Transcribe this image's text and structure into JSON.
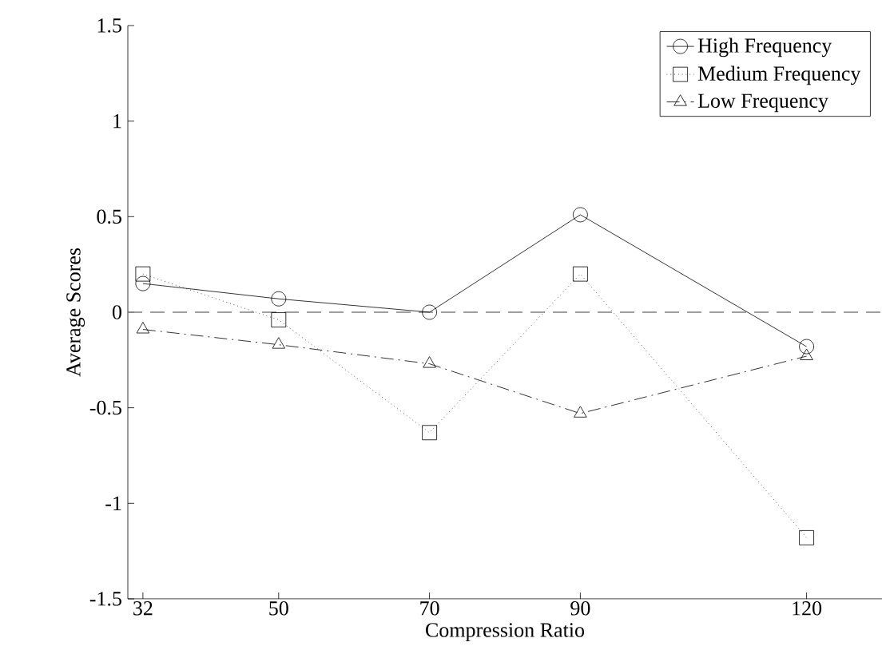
{
  "chart_data": {
    "type": "line",
    "xlabel": "Compression Ratio",
    "ylabel": "Average Scores",
    "x": [
      32,
      50,
      70,
      90,
      120
    ],
    "xlim": [
      30,
      130
    ],
    "xticks": [
      32,
      50,
      70,
      90,
      120
    ],
    "ylim": [
      -1.5,
      1.5
    ],
    "yticks": [
      -1.5,
      -1,
      -0.5,
      0,
      0.5,
      1,
      1.5
    ],
    "series": [
      {
        "name": "High Frequency",
        "color": "#000000",
        "marker": "circle",
        "line_style": "solid",
        "values": [
          0.15,
          0.07,
          0.0,
          0.51,
          -0.18
        ]
      },
      {
        "name": "Medium Frequency",
        "color": "#000000",
        "marker": "square",
        "line_style": "dotted",
        "values": [
          0.2,
          -0.04,
          -0.63,
          0.2,
          -1.18
        ]
      },
      {
        "name": "Low Frequency",
        "color": "#000000",
        "marker": "triangle",
        "line_style": "dashdotted",
        "values": [
          -0.09,
          -0.17,
          -0.27,
          -0.53,
          -0.23
        ]
      }
    ],
    "ref_lines": [
      {
        "axis": "y",
        "value": 0,
        "color": "#808080",
        "line_style": "dashed"
      }
    ],
    "legend": "top right",
    "grid": false
  }
}
